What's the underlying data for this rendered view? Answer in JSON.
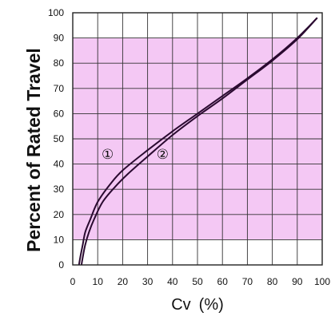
{
  "chart_data": {
    "type": "line",
    "title": "",
    "xlabel": "Cv (%)",
    "ylabel": "Percent of Rated Travel",
    "xlim": [
      0,
      100
    ],
    "ylim": [
      0,
      100
    ],
    "x_ticks": [
      "0",
      "10",
      "20",
      "30",
      "40",
      "50",
      "60",
      "70",
      "80",
      "90",
      "100"
    ],
    "y_ticks": [
      "0",
      "10",
      "20",
      "30",
      "40",
      "50",
      "60",
      "70",
      "80",
      "90",
      "100"
    ],
    "grid": true,
    "shaded_band": {
      "y_from": 10,
      "y_to": 90,
      "color": "#f4c8f4"
    },
    "line_color": "#2a0a30",
    "series": [
      {
        "name": "①",
        "label_at": [
          14,
          44
        ],
        "points": [
          [
            2.5,
            0
          ],
          [
            3,
            3
          ],
          [
            4,
            8
          ],
          [
            5,
            13
          ],
          [
            7,
            18
          ],
          [
            10,
            25
          ],
          [
            15,
            32
          ],
          [
            20,
            37.5
          ],
          [
            30,
            45.5
          ],
          [
            40,
            53
          ],
          [
            50,
            60
          ],
          [
            60,
            67
          ],
          [
            70,
            74
          ],
          [
            80,
            81.5
          ],
          [
            90,
            90
          ],
          [
            98,
            98
          ]
        ]
      },
      {
        "name": "②",
        "label_at": [
          36,
          44
        ],
        "points": [
          [
            3.5,
            0
          ],
          [
            4,
            3
          ],
          [
            5,
            8
          ],
          [
            6.5,
            13
          ],
          [
            8.5,
            18
          ],
          [
            12,
            25
          ],
          [
            17,
            31
          ],
          [
            22,
            36
          ],
          [
            30,
            43
          ],
          [
            40,
            51.5
          ],
          [
            50,
            59
          ],
          [
            60,
            66
          ],
          [
            70,
            73.5
          ],
          [
            80,
            81
          ],
          [
            90,
            89.5
          ],
          [
            98,
            98
          ]
        ]
      }
    ]
  }
}
